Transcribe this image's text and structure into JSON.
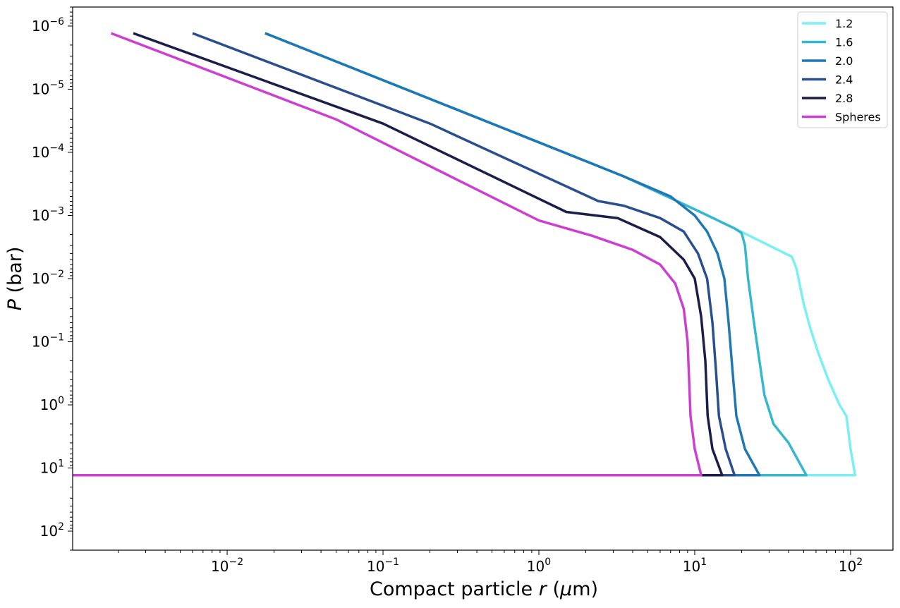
{
  "chart_data": {
    "type": "line",
    "title": "",
    "xlabel": "Compact particle r (μm)",
    "xlabel_parts": {
      "pre": "Compact particle ",
      "var": "r",
      "post": " (",
      "mu": "μ",
      "unit": "m)"
    },
    "ylabel": "P (bar)",
    "ylabel_parts": {
      "var": "P",
      "unit": " (bar)"
    },
    "xscale": "log",
    "yscale": "log",
    "y_inverted": true,
    "xlim": [
      0.00102,
      187
    ],
    "ylim": [
      200,
      5e-07
    ],
    "x_ticks": [
      {
        "value": 0.01,
        "base": "10",
        "exp": "−2"
      },
      {
        "value": 0.1,
        "base": "10",
        "exp": "−1"
      },
      {
        "value": 1,
        "base": "10",
        "exp": "0"
      },
      {
        "value": 10,
        "base": "10",
        "exp": "1"
      },
      {
        "value": 100,
        "base": "10",
        "exp": "2"
      }
    ],
    "y_ticks": [
      {
        "value": 1e-06,
        "base": "10",
        "exp": "−6"
      },
      {
        "value": 1e-05,
        "base": "10",
        "exp": "−5"
      },
      {
        "value": 0.0001,
        "base": "10",
        "exp": "−4"
      },
      {
        "value": 0.001,
        "base": "10",
        "exp": "−3"
      },
      {
        "value": 0.01,
        "base": "10",
        "exp": "−2"
      },
      {
        "value": 0.1,
        "base": "10",
        "exp": "−1"
      },
      {
        "value": 1,
        "base": "10",
        "exp": "0"
      },
      {
        "value": 10,
        "base": "10",
        "exp": "1"
      },
      {
        "value": 100,
        "base": "10",
        "exp": "2"
      }
    ],
    "grid": false,
    "legend_position": "top-right",
    "series": [
      {
        "name": "1.2",
        "color": "#7af0f5",
        "points": [
          [
            0.0175,
            1.3e-06
          ],
          [
            0.5,
            3.5e-05
          ],
          [
            3.5,
            0.00024
          ],
          [
            10,
            0.0008
          ],
          [
            18,
            0.0016
          ],
          [
            42,
            0.0045
          ],
          [
            45,
            0.007
          ],
          [
            50,
            0.025
          ],
          [
            55,
            0.06
          ],
          [
            62,
            0.15
          ],
          [
            72,
            0.4
          ],
          [
            85,
            1.0
          ],
          [
            94,
            1.5
          ],
          [
            100,
            5
          ],
          [
            107,
            13
          ],
          [
            50,
            13
          ]
        ]
      },
      {
        "name": "1.6",
        "color": "#35b8ce",
        "points": [
          [
            0.0175,
            1.3e-06
          ],
          [
            0.5,
            3.5e-05
          ],
          [
            3.5,
            0.00024
          ],
          [
            10,
            0.0008
          ],
          [
            18,
            0.0016
          ],
          [
            20,
            0.0019
          ],
          [
            21,
            0.003
          ],
          [
            22,
            0.01
          ],
          [
            24,
            0.05
          ],
          [
            26,
            0.2
          ],
          [
            28,
            0.7
          ],
          [
            32,
            2
          ],
          [
            40,
            4
          ],
          [
            52,
            13
          ],
          [
            25,
            13
          ]
        ]
      },
      {
        "name": "2.0",
        "color": "#1f77b4",
        "points": [
          [
            0.0175,
            1.3e-06
          ],
          [
            0.5,
            3.5e-05
          ],
          [
            3.5,
            0.00024
          ],
          [
            7,
            0.0005
          ],
          [
            10,
            0.001
          ],
          [
            12,
            0.0018
          ],
          [
            14,
            0.004
          ],
          [
            15.5,
            0.01
          ],
          [
            16.5,
            0.05
          ],
          [
            17.5,
            0.3
          ],
          [
            18.5,
            1.5
          ],
          [
            21,
            5
          ],
          [
            26,
            13
          ],
          [
            18,
            13
          ]
        ]
      },
      {
        "name": "2.4",
        "color": "#2a4f8e",
        "points": [
          [
            0.006,
            1.3e-06
          ],
          [
            0.2,
            3.5e-05
          ],
          [
            2.4,
            0.00059
          ],
          [
            3.5,
            0.0007
          ],
          [
            6,
            0.0011
          ],
          [
            8.5,
            0.0018
          ],
          [
            10.5,
            0.004
          ],
          [
            12,
            0.01
          ],
          [
            13,
            0.05
          ],
          [
            13.7,
            0.3
          ],
          [
            14.3,
            1.5
          ],
          [
            15.8,
            5
          ],
          [
            18,
            13
          ],
          [
            15,
            13
          ]
        ]
      },
      {
        "name": "2.8",
        "color": "#1b1e4b",
        "points": [
          [
            0.0025,
            1.3e-06
          ],
          [
            0.1,
            3.5e-05
          ],
          [
            1.5,
            0.00088
          ],
          [
            3.2,
            0.0011
          ],
          [
            6,
            0.0022
          ],
          [
            8.5,
            0.005
          ],
          [
            10,
            0.01
          ],
          [
            11,
            0.04
          ],
          [
            11.7,
            0.2
          ],
          [
            12.1,
            1.5
          ],
          [
            13,
            5
          ],
          [
            15,
            13
          ],
          [
            11,
            13
          ]
        ]
      },
      {
        "name": "Spheres",
        "color": "#cc3fd1",
        "points": [
          [
            0.0018,
            1.3e-06
          ],
          [
            0.05,
            3e-05
          ],
          [
            1,
            0.0012
          ],
          [
            2.2,
            0.0021
          ],
          [
            4,
            0.0035
          ],
          [
            6,
            0.006
          ],
          [
            7.5,
            0.012
          ],
          [
            8.5,
            0.03
          ],
          [
            9,
            0.1
          ],
          [
            9.2,
            0.4
          ],
          [
            9.4,
            1.5
          ],
          [
            10,
            5
          ],
          [
            11,
            13
          ],
          [
            0.00102,
            13
          ]
        ]
      }
    ]
  }
}
